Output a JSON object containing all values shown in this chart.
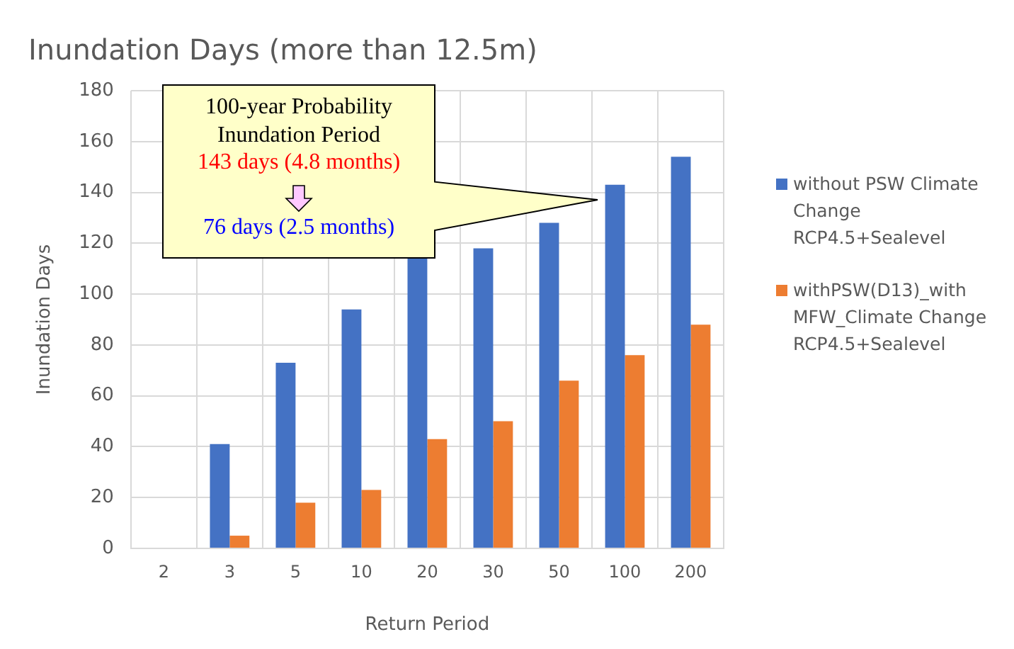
{
  "chart_data": {
    "type": "bar",
    "title": "Inundation Days (more than 12.5m)",
    "xlabel": "Return Period",
    "ylabel": "Inundation Days",
    "categories": [
      "2",
      "3",
      "5",
      "10",
      "20",
      "30",
      "50",
      "100",
      "200"
    ],
    "series": [
      {
        "name": "without PSW Climate Change RCP4.5+Sealevel",
        "color": "#4472c4",
        "values": [
          0,
          41,
          73,
          94,
          114,
          118,
          128,
          143,
          154
        ]
      },
      {
        "name": "withPSW(D13)_with MFW_Climate Change RCP4.5+Sealevel",
        "color": "#ed7d31",
        "values": [
          0,
          5,
          18,
          23,
          43,
          50,
          66,
          76,
          88
        ]
      }
    ],
    "ylim": [
      0,
      180
    ],
    "yticks": [
      0,
      20,
      40,
      60,
      80,
      100,
      120,
      140,
      160,
      180
    ],
    "grid": true,
    "legend": "right",
    "annotations": [
      "100-year Probability Inundation Period",
      "143 days (4.8 months)",
      "76 days (2.5 months)"
    ]
  }
}
